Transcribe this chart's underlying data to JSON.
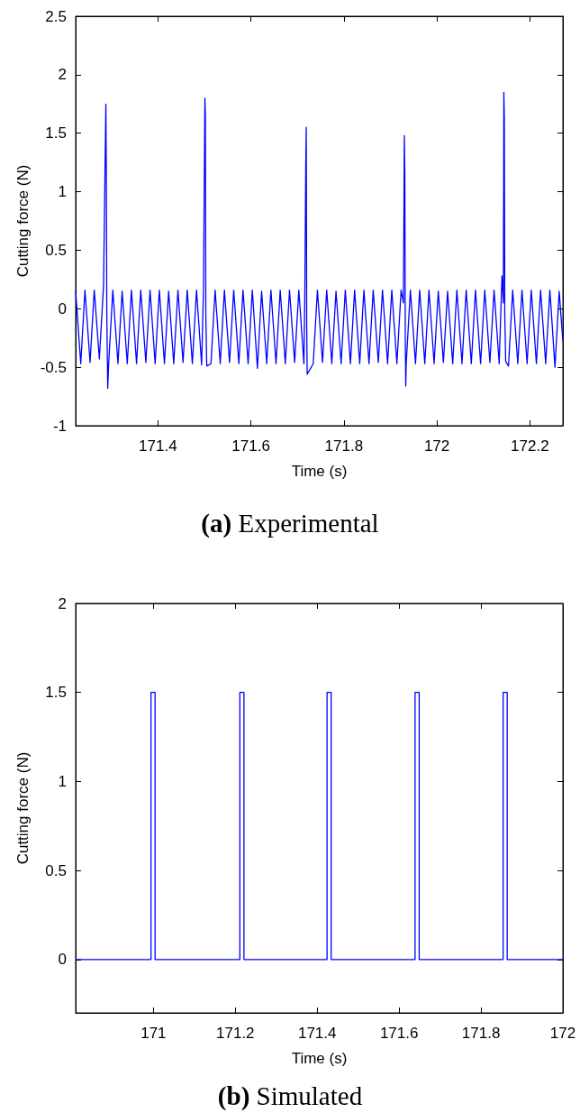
{
  "chart_data": [
    {
      "type": "line",
      "title": "(a) Experimental",
      "xlabel": "Time (s)",
      "ylabel": "Cutting force (N)",
      "xlim": [
        171.223,
        172.271
      ],
      "xticks": [
        171.4,
        171.6,
        171.8,
        172,
        172.2
      ],
      "ylim": [
        -1,
        2.5
      ],
      "yticks": [
        -1,
        -0.5,
        0,
        0.5,
        1,
        1.5,
        2,
        2.5
      ],
      "series": [
        {
          "color": "#0000ff",
          "x": [
            171.223,
            171.234,
            171.243,
            171.254,
            171.263,
            171.274,
            171.283,
            171.288,
            171.289,
            171.29,
            171.292,
            171.294,
            171.303,
            171.314,
            171.323,
            171.334,
            171.343,
            171.354,
            171.363,
            171.374,
            171.383,
            171.394,
            171.403,
            171.414,
            171.423,
            171.434,
            171.443,
            171.454,
            171.463,
            171.474,
            171.483,
            171.494,
            171.498,
            171.501,
            171.502,
            171.503,
            171.505,
            171.514,
            171.523,
            171.534,
            171.543,
            171.554,
            171.563,
            171.574,
            171.583,
            171.594,
            171.603,
            171.614,
            171.623,
            171.634,
            171.643,
            171.654,
            171.663,
            171.674,
            171.683,
            171.694,
            171.703,
            171.714,
            171.716,
            171.718,
            171.719,
            171.72,
            171.721,
            171.734,
            171.743,
            171.754,
            171.763,
            171.774,
            171.783,
            171.794,
            171.803,
            171.814,
            171.823,
            171.834,
            171.843,
            171.854,
            171.863,
            171.874,
            171.883,
            171.894,
            171.903,
            171.914,
            171.923,
            171.928,
            171.93,
            171.931,
            171.932,
            171.933,
            171.934,
            171.943,
            171.954,
            171.963,
            171.974,
            171.983,
            171.994,
            172.003,
            172.014,
            172.023,
            172.034,
            172.043,
            172.054,
            172.063,
            172.074,
            172.083,
            172.094,
            172.103,
            172.114,
            172.123,
            172.134,
            172.14,
            172.143,
            172.144,
            172.145,
            172.146,
            172.148,
            172.154,
            172.163,
            172.174,
            172.183,
            172.194,
            172.203,
            172.214,
            172.223,
            172.234,
            172.243,
            172.254,
            172.263,
            172.271
          ],
          "values": [
            0.15,
            -0.47,
            0.16,
            -0.46,
            0.16,
            -0.43,
            0.2,
            1.75,
            1.13,
            -0.05,
            -0.68,
            -0.47,
            0.16,
            -0.47,
            0.15,
            -0.47,
            0.16,
            -0.47,
            0.16,
            -0.46,
            0.16,
            -0.47,
            0.16,
            -0.47,
            0.15,
            -0.47,
            0.16,
            -0.46,
            0.16,
            -0.47,
            0.16,
            -0.48,
            0.17,
            1.8,
            1.65,
            -0.05,
            -0.49,
            -0.47,
            0.16,
            -0.47,
            0.16,
            -0.46,
            0.16,
            -0.47,
            0.16,
            -0.47,
            0.16,
            -0.51,
            0.15,
            -0.47,
            0.16,
            -0.47,
            0.16,
            -0.47,
            0.16,
            -0.46,
            0.16,
            -0.47,
            0.15,
            1.24,
            1.55,
            -0.15,
            -0.56,
            -0.47,
            0.16,
            -0.46,
            0.16,
            -0.47,
            0.15,
            -0.47,
            0.16,
            -0.47,
            0.16,
            -0.47,
            0.16,
            -0.47,
            0.16,
            -0.46,
            0.16,
            -0.47,
            0.16,
            -0.47,
            0.16,
            0.05,
            1.48,
            1.15,
            -0.23,
            -0.66,
            -0.47,
            0.16,
            -0.47,
            0.16,
            -0.47,
            0.16,
            -0.47,
            0.15,
            -0.46,
            0.15,
            -0.47,
            0.16,
            -0.47,
            0.16,
            -0.47,
            0.16,
            -0.47,
            0.16,
            -0.46,
            0.16,
            -0.47,
            0.28,
            0.05,
            1.85,
            1.63,
            -0.05,
            -0.45,
            -0.49,
            0.16,
            -0.47,
            0.16,
            -0.47,
            0.16,
            -0.47,
            0.16,
            -0.47,
            0.16,
            -0.5,
            0.15,
            -0.28
          ]
        }
      ]
    },
    {
      "type": "step",
      "title": "(b) Simulated",
      "xlabel": "Time (s)",
      "ylabel": "Cutting force (N)",
      "xlim": [
        170.81,
        172
      ],
      "xticks": [
        171,
        171.2,
        171.4,
        171.6,
        171.8,
        172
      ],
      "ylim": [
        -0.3,
        2
      ],
      "yticks": [
        0,
        0.5,
        1,
        1.5,
        2
      ],
      "series": [
        {
          "color": "#0000ff",
          "x": [
            170.81,
            170.994,
            171.004,
            171.211,
            171.221,
            171.424,
            171.434,
            171.639,
            171.649,
            171.854,
            171.864,
            172
          ],
          "values": [
            0,
            1.5,
            0,
            1.5,
            0,
            1.5,
            0,
            1.5,
            0,
            1.5,
            0,
            0
          ]
        }
      ]
    }
  ]
}
